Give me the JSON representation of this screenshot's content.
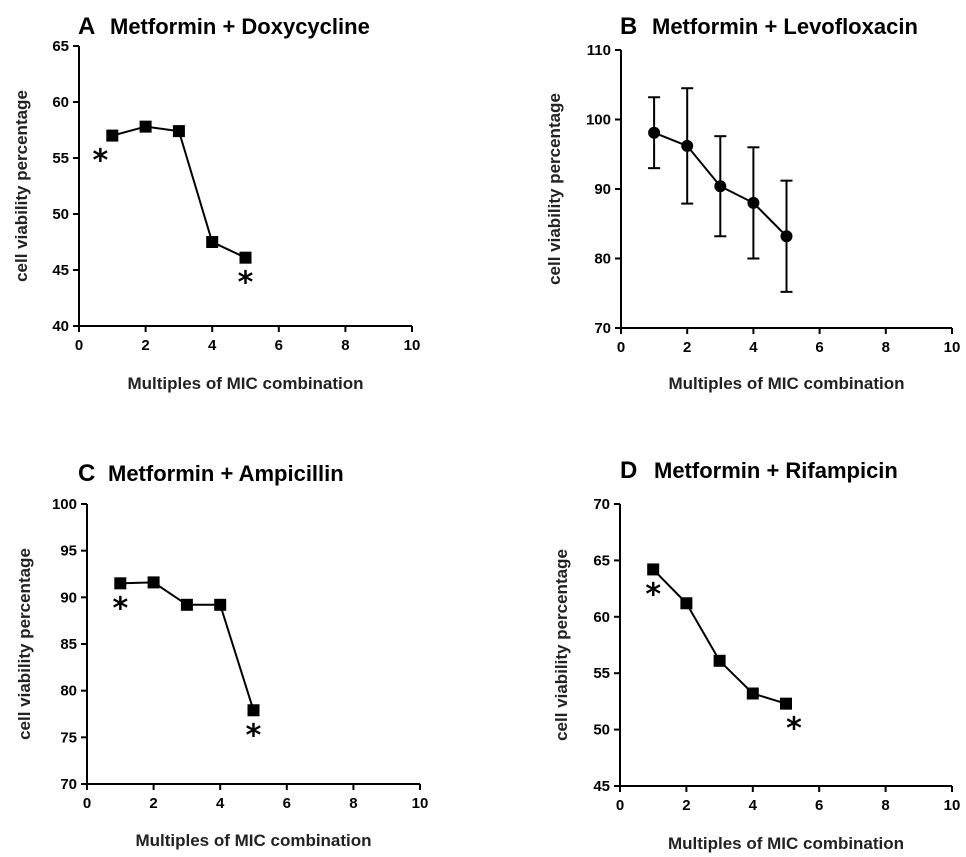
{
  "chart_data": [
    {
      "type": "line",
      "panel_letter": "A",
      "title": "Metformin + Doxycycline",
      "xlabel": "Multiples of MIC combination",
      "ylabel": "cell viability percentage",
      "xlim": [
        0,
        10
      ],
      "ylim": [
        40,
        65
      ],
      "xticks": [
        0,
        2,
        4,
        6,
        8,
        10
      ],
      "yticks": [
        40,
        45,
        50,
        55,
        60,
        65
      ],
      "marker": "square",
      "series": [
        {
          "x": [
            1,
            2,
            3,
            4,
            5
          ],
          "values": [
            57.0,
            57.8,
            57.4,
            47.5,
            46.1
          ]
        }
      ],
      "annotations": [
        {
          "text": "*",
          "x": 1,
          "position": "below-left"
        },
        {
          "text": "*",
          "x": 5,
          "position": "below"
        }
      ]
    },
    {
      "type": "line",
      "panel_letter": "B",
      "title": "Metformin + Levofloxacin",
      "xlabel": "Multiples of MIC combination",
      "ylabel": "cell viability percentage",
      "xlim": [
        0,
        10
      ],
      "ylim": [
        70,
        110
      ],
      "xticks": [
        0,
        2,
        4,
        6,
        8,
        10
      ],
      "yticks": [
        70,
        80,
        90,
        100,
        110
      ],
      "marker": "circle",
      "series": [
        {
          "x": [
            1,
            2,
            3,
            4,
            5
          ],
          "values": [
            98.1,
            96.2,
            90.4,
            88.0,
            83.2
          ],
          "error": [
            5.1,
            8.3,
            7.2,
            8.0,
            8.0
          ]
        }
      ],
      "annotations": []
    },
    {
      "type": "line",
      "panel_letter": "C",
      "title": "Metformin + Ampicillin",
      "xlabel": "Multiples of MIC combination",
      "ylabel": "cell viability percentage",
      "xlim": [
        0,
        10
      ],
      "ylim": [
        70,
        100
      ],
      "xticks": [
        0,
        2,
        4,
        6,
        8,
        10
      ],
      "yticks": [
        70,
        75,
        80,
        85,
        90,
        95,
        100
      ],
      "marker": "square",
      "series": [
        {
          "x": [
            1,
            2,
            3,
            4,
            5
          ],
          "values": [
            91.5,
            91.6,
            89.2,
            89.2,
            77.9
          ]
        }
      ],
      "annotations": [
        {
          "text": "*",
          "x": 1,
          "position": "below"
        },
        {
          "text": "*",
          "x": 5,
          "position": "below"
        }
      ]
    },
    {
      "type": "line",
      "panel_letter": "D",
      "title": "Metformin + Rifampicin",
      "xlabel": "Multiples of MIC combination",
      "ylabel": "cell viability percentage",
      "xlim": [
        0,
        10
      ],
      "ylim": [
        45,
        70
      ],
      "xticks": [
        0,
        2,
        4,
        6,
        8,
        10
      ],
      "yticks": [
        45,
        50,
        55,
        60,
        65,
        70
      ],
      "marker": "square",
      "series": [
        {
          "x": [
            1,
            2,
            3,
            4,
            5
          ],
          "values": [
            64.2,
            61.2,
            56.1,
            53.2,
            52.3
          ]
        }
      ],
      "annotations": [
        {
          "text": "*",
          "x": 1,
          "position": "below"
        },
        {
          "text": "*",
          "x": 5,
          "position": "below-right"
        }
      ]
    }
  ]
}
